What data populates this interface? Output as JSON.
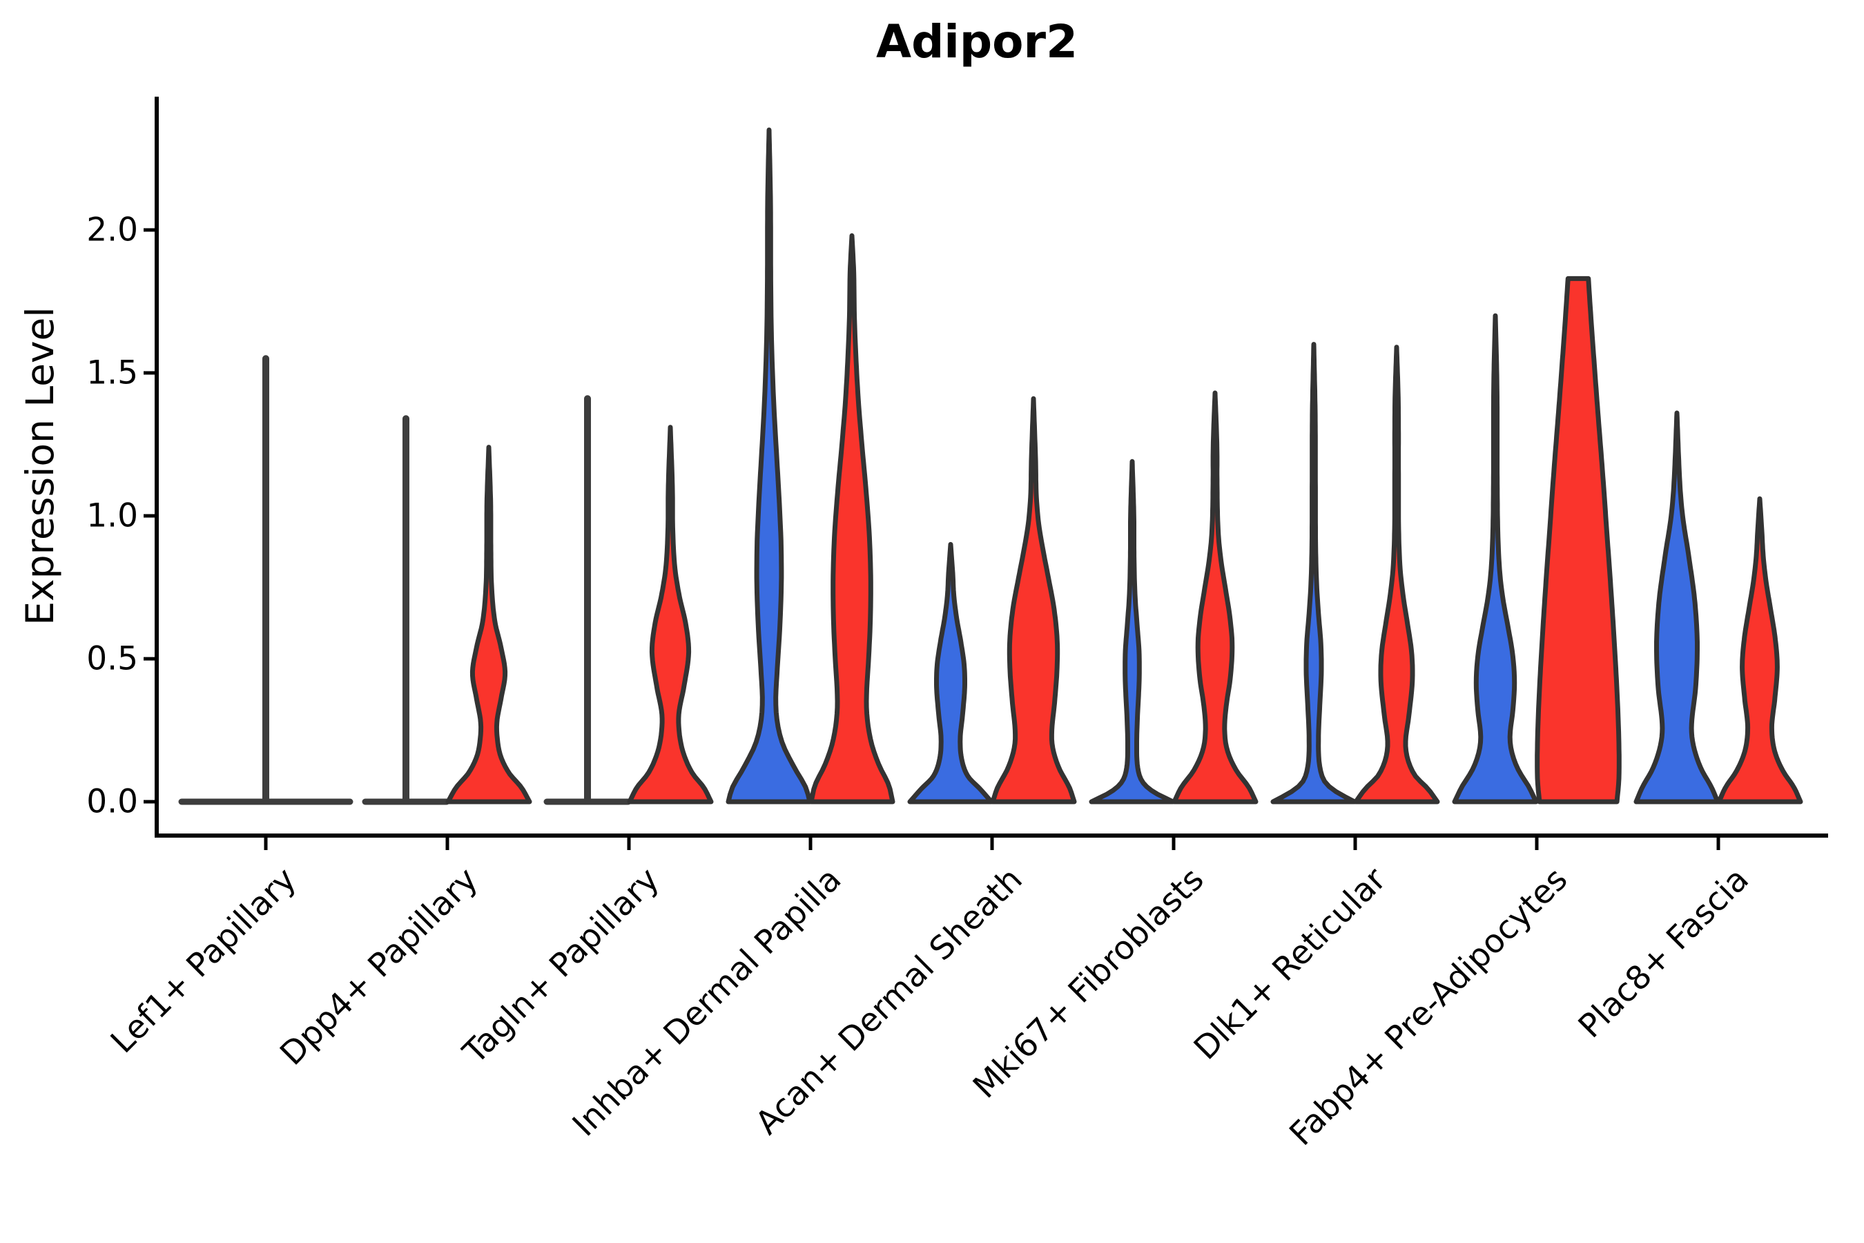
{
  "title": "Adipor2",
  "axes": {
    "ylabel": "Expression Level",
    "ytick_labels": [
      "0.0",
      "0.5",
      "1.0",
      "1.5",
      "2.0"
    ]
  },
  "colors": {
    "blue": "#3a6ce1",
    "red": "#fa342c",
    "outline": "#333333",
    "collapsed_line": "#3d3d3d",
    "axis": "#000000",
    "background": "#ffffff"
  },
  "chart_data": {
    "type": "violin",
    "title": "Adipor2",
    "ylabel": "Expression Level",
    "ylim": [
      0,
      2.47
    ],
    "yticks": [
      0,
      0.5,
      1.0,
      1.5,
      2.0
    ],
    "grid": false,
    "legend": "none",
    "series_note": "two violins per category: left=blue, right=red; collapsed = all-zero flat violin with outlier spike",
    "categories": [
      {
        "label": "Lef1+ Papillary",
        "blue": {
          "kind": "collapsed",
          "max": 1.55,
          "span": "full"
        },
        "red": null
      },
      {
        "label": "Dpp4+ Papillary",
        "blue": {
          "kind": "collapsed",
          "max": 1.34
        },
        "red": {
          "kind": "violin",
          "max": 1.24,
          "profile": [
            [
              0,
              1.0
            ],
            [
              0.05,
              0.8
            ],
            [
              0.1,
              0.5
            ],
            [
              0.16,
              0.29
            ],
            [
              0.22,
              0.21
            ],
            [
              0.28,
              0.2
            ],
            [
              0.36,
              0.3
            ],
            [
              0.45,
              0.4
            ],
            [
              0.54,
              0.3
            ],
            [
              0.63,
              0.15
            ],
            [
              0.75,
              0.07
            ],
            [
              0.9,
              0.05
            ],
            [
              1.05,
              0.045
            ],
            [
              1.24,
              0
            ]
          ]
        }
      },
      {
        "label": "Tagln+ Papillary",
        "blue": {
          "kind": "collapsed",
          "max": 1.41
        },
        "red": {
          "kind": "violin",
          "max": 1.31,
          "profile": [
            [
              0,
              1.0
            ],
            [
              0.05,
              0.82
            ],
            [
              0.1,
              0.54
            ],
            [
              0.17,
              0.32
            ],
            [
              0.24,
              0.22
            ],
            [
              0.31,
              0.21
            ],
            [
              0.4,
              0.33
            ],
            [
              0.52,
              0.45
            ],
            [
              0.62,
              0.38
            ],
            [
              0.72,
              0.22
            ],
            [
              0.82,
              0.11
            ],
            [
              0.95,
              0.06
            ],
            [
              1.1,
              0.05
            ],
            [
              1.31,
              0
            ]
          ]
        }
      },
      {
        "label": "Inhba+ Dermal Papilla",
        "blue": {
          "kind": "violin",
          "max": 2.35,
          "profile": [
            [
              0,
              1.0
            ],
            [
              0.05,
              0.9
            ],
            [
              0.12,
              0.62
            ],
            [
              0.2,
              0.34
            ],
            [
              0.28,
              0.2
            ],
            [
              0.36,
              0.165
            ],
            [
              0.46,
              0.2
            ],
            [
              0.6,
              0.26
            ],
            [
              0.75,
              0.3
            ],
            [
              0.9,
              0.295
            ],
            [
              1.05,
              0.25
            ],
            [
              1.2,
              0.19
            ],
            [
              1.35,
              0.13
            ],
            [
              1.5,
              0.085
            ],
            [
              1.65,
              0.055
            ],
            [
              1.85,
              0.04
            ],
            [
              2.1,
              0.035
            ],
            [
              2.35,
              0
            ]
          ]
        },
        "red": {
          "kind": "violin",
          "max": 1.98,
          "profile": [
            [
              0,
              1.0
            ],
            [
              0.06,
              0.9
            ],
            [
              0.13,
              0.66
            ],
            [
              0.21,
              0.47
            ],
            [
              0.3,
              0.37
            ],
            [
              0.38,
              0.36
            ],
            [
              0.5,
              0.41
            ],
            [
              0.65,
              0.455
            ],
            [
              0.8,
              0.46
            ],
            [
              0.95,
              0.42
            ],
            [
              1.1,
              0.34
            ],
            [
              1.25,
              0.245
            ],
            [
              1.4,
              0.16
            ],
            [
              1.55,
              0.1
            ],
            [
              1.7,
              0.06
            ],
            [
              1.85,
              0.045
            ],
            [
              1.98,
              0
            ]
          ]
        }
      },
      {
        "label": "Acan+ Dermal Sheath",
        "blue": {
          "kind": "violin",
          "max": 0.9,
          "profile": [
            [
              0,
              1.0
            ],
            [
              0.045,
              0.72
            ],
            [
              0.09,
              0.42
            ],
            [
              0.15,
              0.27
            ],
            [
              0.22,
              0.235
            ],
            [
              0.3,
              0.29
            ],
            [
              0.4,
              0.345
            ],
            [
              0.48,
              0.33
            ],
            [
              0.56,
              0.25
            ],
            [
              0.64,
              0.15
            ],
            [
              0.72,
              0.08
            ],
            [
              0.8,
              0.05
            ],
            [
              0.9,
              0
            ]
          ]
        },
        "red": {
          "kind": "violin",
          "max": 1.41,
          "profile": [
            [
              0,
              1.0
            ],
            [
              0.05,
              0.88
            ],
            [
              0.12,
              0.62
            ],
            [
              0.19,
              0.47
            ],
            [
              0.25,
              0.45
            ],
            [
              0.35,
              0.52
            ],
            [
              0.47,
              0.58
            ],
            [
              0.57,
              0.58
            ],
            [
              0.68,
              0.5
            ],
            [
              0.78,
              0.37
            ],
            [
              0.88,
              0.235
            ],
            [
              0.97,
              0.13
            ],
            [
              1.07,
              0.07
            ],
            [
              1.2,
              0.05
            ],
            [
              1.41,
              0
            ]
          ]
        }
      },
      {
        "label": "Mki67+ Fibroblasts",
        "blue": {
          "kind": "violin",
          "max": 1.19,
          "profile": [
            [
              0,
              1.0
            ],
            [
              0.035,
              0.52
            ],
            [
              0.07,
              0.25
            ],
            [
              0.12,
              0.135
            ],
            [
              0.2,
              0.11
            ],
            [
              0.3,
              0.13
            ],
            [
              0.42,
              0.17
            ],
            [
              0.52,
              0.17
            ],
            [
              0.62,
              0.12
            ],
            [
              0.72,
              0.07
            ],
            [
              0.85,
              0.045
            ],
            [
              1.0,
              0.04
            ],
            [
              1.19,
              0
            ]
          ]
        },
        "red": {
          "kind": "violin",
          "max": 1.43,
          "profile": [
            [
              0,
              1.0
            ],
            [
              0.05,
              0.83
            ],
            [
              0.11,
              0.52
            ],
            [
              0.18,
              0.3
            ],
            [
              0.25,
              0.235
            ],
            [
              0.33,
              0.27
            ],
            [
              0.44,
              0.38
            ],
            [
              0.55,
              0.42
            ],
            [
              0.65,
              0.36
            ],
            [
              0.75,
              0.25
            ],
            [
              0.85,
              0.14
            ],
            [
              0.95,
              0.075
            ],
            [
              1.1,
              0.05
            ],
            [
              1.25,
              0.045
            ],
            [
              1.43,
              0
            ]
          ]
        }
      },
      {
        "label": "Dlk1+ Reticular",
        "blue": {
          "kind": "violin",
          "max": 1.6,
          "profile": [
            [
              0,
              1.0
            ],
            [
              0.035,
              0.55
            ],
            [
              0.07,
              0.27
            ],
            [
              0.13,
              0.14
            ],
            [
              0.22,
              0.115
            ],
            [
              0.33,
              0.145
            ],
            [
              0.45,
              0.185
            ],
            [
              0.55,
              0.175
            ],
            [
              0.65,
              0.12
            ],
            [
              0.76,
              0.07
            ],
            [
              0.9,
              0.045
            ],
            [
              1.1,
              0.04
            ],
            [
              1.35,
              0.035
            ],
            [
              1.6,
              0
            ]
          ]
        },
        "red": {
          "kind": "violin",
          "max": 1.59,
          "profile": [
            [
              0,
              1.0
            ],
            [
              0.045,
              0.77
            ],
            [
              0.09,
              0.46
            ],
            [
              0.15,
              0.27
            ],
            [
              0.21,
              0.22
            ],
            [
              0.3,
              0.3
            ],
            [
              0.42,
              0.385
            ],
            [
              0.52,
              0.37
            ],
            [
              0.62,
              0.27
            ],
            [
              0.72,
              0.16
            ],
            [
              0.82,
              0.085
            ],
            [
              0.95,
              0.05
            ],
            [
              1.15,
              0.045
            ],
            [
              1.4,
              0.04
            ],
            [
              1.59,
              0
            ]
          ]
        }
      },
      {
        "label": "Fabp4+ Pre-Adipocytes",
        "blue": {
          "kind": "violin",
          "max": 1.7,
          "profile": [
            [
              0,
              1.0
            ],
            [
              0.05,
              0.83
            ],
            [
              0.11,
              0.57
            ],
            [
              0.17,
              0.41
            ],
            [
              0.23,
              0.36
            ],
            [
              0.32,
              0.43
            ],
            [
              0.42,
              0.47
            ],
            [
              0.52,
              0.42
            ],
            [
              0.62,
              0.3
            ],
            [
              0.72,
              0.175
            ],
            [
              0.82,
              0.1
            ],
            [
              0.95,
              0.06
            ],
            [
              1.15,
              0.045
            ],
            [
              1.45,
              0.04
            ],
            [
              1.7,
              0
            ]
          ]
        },
        "red": {
          "kind": "violin",
          "max": 1.83,
          "flat_top": true,
          "profile": [
            [
              0,
              0.95
            ],
            [
              0.08,
              1.0
            ],
            [
              0.2,
              1.0
            ],
            [
              0.35,
              0.965
            ],
            [
              0.55,
              0.89
            ],
            [
              0.75,
              0.8
            ],
            [
              0.95,
              0.7
            ],
            [
              1.15,
              0.6
            ],
            [
              1.35,
              0.49
            ],
            [
              1.55,
              0.385
            ],
            [
              1.7,
              0.31
            ],
            [
              1.83,
              0.25
            ]
          ]
        }
      },
      {
        "label": "Plac8+ Fascia",
        "blue": {
          "kind": "violin",
          "max": 1.36,
          "profile": [
            [
              0,
              1.0
            ],
            [
              0.05,
              0.85
            ],
            [
              0.12,
              0.58
            ],
            [
              0.2,
              0.4
            ],
            [
              0.27,
              0.36
            ],
            [
              0.4,
              0.46
            ],
            [
              0.55,
              0.5
            ],
            [
              0.7,
              0.44
            ],
            [
              0.85,
              0.3
            ],
            [
              1.0,
              0.14
            ],
            [
              1.12,
              0.07
            ],
            [
              1.36,
              0
            ]
          ]
        },
        "red": {
          "kind": "violin",
          "max": 1.06,
          "profile": [
            [
              0,
              1.0
            ],
            [
              0.05,
              0.84
            ],
            [
              0.11,
              0.56
            ],
            [
              0.18,
              0.36
            ],
            [
              0.26,
              0.295
            ],
            [
              0.36,
              0.37
            ],
            [
              0.47,
              0.43
            ],
            [
              0.57,
              0.38
            ],
            [
              0.67,
              0.27
            ],
            [
              0.77,
              0.155
            ],
            [
              0.86,
              0.085
            ],
            [
              0.95,
              0.05
            ],
            [
              1.06,
              0
            ]
          ]
        }
      }
    ]
  }
}
